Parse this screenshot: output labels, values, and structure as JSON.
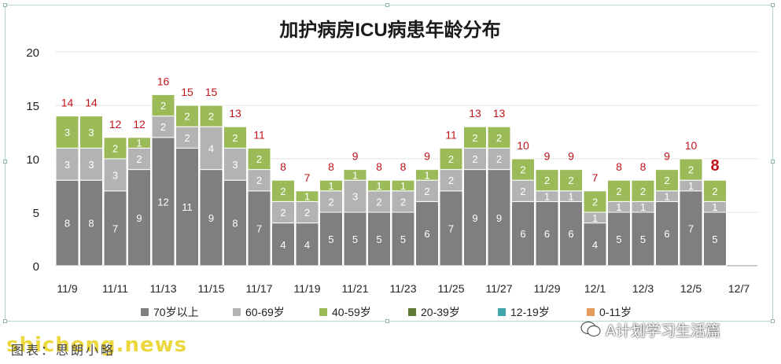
{
  "chart_data": {
    "type": "bar",
    "stacked": true,
    "title": "加护病房ICU病患年龄分布",
    "ylim": [
      0,
      20
    ],
    "yticks": [
      0,
      5,
      10,
      15,
      20
    ],
    "grid": true,
    "legend_position": "bottom",
    "x_tick_labels": [
      "11/9",
      "11/11",
      "11/13",
      "11/15",
      "11/17",
      "11/19",
      "11/21",
      "11/23",
      "11/25",
      "11/27",
      "11/29",
      "12/1",
      "12/3",
      "12/5",
      "12/7"
    ],
    "categories": [
      "11/9",
      "11/10",
      "11/11",
      "11/12",
      "11/13",
      "11/14",
      "11/15",
      "11/16",
      "11/17",
      "11/18",
      "11/19",
      "11/20",
      "11/21",
      "11/22",
      "11/23",
      "11/24",
      "11/25",
      "11/26",
      "11/27",
      "11/28",
      "11/29",
      "11/30",
      "12/1",
      "12/2",
      "12/3",
      "12/4",
      "12/5",
      "12/6"
    ],
    "series": [
      {
        "name": "70岁以上",
        "color": "#7f7f7f",
        "values": [
          8,
          8,
          7,
          9,
          12,
          11,
          9,
          8,
          7,
          4,
          4,
          5,
          5,
          5,
          5,
          6,
          7,
          9,
          9,
          6,
          6,
          6,
          4,
          5,
          5,
          6,
          7,
          5
        ]
      },
      {
        "name": "60-69岁",
        "color": "#b3b3b3",
        "values": [
          3,
          3,
          3,
          2,
          2,
          2,
          4,
          3,
          2,
          2,
          2,
          2,
          3,
          2,
          2,
          2,
          2,
          2,
          2,
          2,
          1,
          1,
          1,
          1,
          1,
          1,
          1,
          1
        ]
      },
      {
        "name": "40-59岁",
        "color": "#9bbb59",
        "values": [
          3,
          3,
          2,
          1,
          2,
          2,
          2,
          2,
          2,
          2,
          1,
          1,
          1,
          1,
          1,
          1,
          2,
          2,
          2,
          2,
          2,
          2,
          2,
          2,
          2,
          2,
          2,
          2
        ]
      },
      {
        "name": "20-39岁",
        "color": "#5f7a32",
        "values": [
          0,
          0,
          0,
          0,
          0,
          0,
          0,
          0,
          0,
          0,
          0,
          0,
          0,
          0,
          0,
          0,
          0,
          0,
          0,
          0,
          0,
          0,
          0,
          0,
          0,
          0,
          0,
          0
        ]
      },
      {
        "name": "12-19岁",
        "color": "#3fa6ad",
        "values": [
          0,
          0,
          0,
          0,
          0,
          0,
          0,
          0,
          0,
          0,
          0,
          0,
          0,
          0,
          0,
          0,
          0,
          0,
          0,
          0,
          0,
          0,
          0,
          0,
          0,
          0,
          0,
          0
        ]
      },
      {
        "name": "0-11岁",
        "color": "#e59b5b",
        "values": [
          0,
          0,
          0,
          0,
          0,
          0,
          0,
          0,
          0,
          0,
          0,
          0,
          0,
          0,
          0,
          0,
          0,
          0,
          0,
          0,
          0,
          0,
          0,
          0,
          0,
          0,
          0,
          0
        ]
      }
    ],
    "totals": [
      14,
      14,
      12,
      12,
      16,
      15,
      15,
      13,
      11,
      8,
      7,
      8,
      9,
      8,
      8,
      9,
      11,
      13,
      13,
      10,
      9,
      9,
      7,
      8,
      8,
      9,
      10,
      8
    ],
    "total_label_color": "#c0141c",
    "highlighted_total_index": 27
  },
  "footer": {
    "credit": "图表：思朗小略",
    "watermark_site": "shicheng.news",
    "watermark_account": "A计划学习生活篇"
  }
}
